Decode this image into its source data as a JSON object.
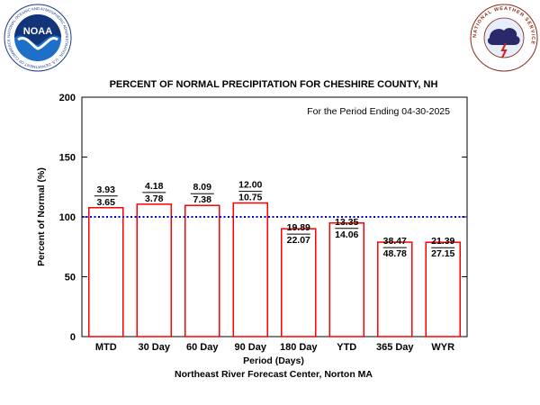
{
  "logos": {
    "left": {
      "text": "NOAA",
      "ring_text": "NATIONAL OCEANIC AND ATMOSPHERIC ADMINISTRATION · U.S. DEPARTMENT OF COMMERCE"
    },
    "right": {
      "ring_text": "NATIONAL WEATHER SERVICE"
    }
  },
  "chart_data": {
    "type": "bar",
    "title": "PERCENT OF NORMAL PRECIPITATION FOR CHESHIRE COUNTY, NH",
    "subtitle": "For the Period Ending 04-30-2025",
    "xlabel": "Period (Days)",
    "ylabel": "Percent of Normal (%)",
    "footer": "Northeast River Forecast Center, Norton MA",
    "ylim": [
      0,
      200
    ],
    "yticks": [
      "0",
      "50",
      "100",
      "150",
      "200"
    ],
    "reference_line": 100,
    "grid": false,
    "categories": [
      "MTD",
      "30 Day",
      "60 Day",
      "90 Day",
      "180 Day",
      "YTD",
      "365 Day",
      "WYR"
    ],
    "values": [
      107.7,
      110.6,
      109.6,
      111.6,
      90.1,
      94.9,
      78.9,
      78.8
    ],
    "observed": [
      "3.93",
      "4.18",
      "8.09",
      "12.00",
      "19.89",
      "13.35",
      "38.47",
      "21.39"
    ],
    "normal": [
      "3.65",
      "3.78",
      "7.38",
      "10.75",
      "22.07",
      "14.06",
      "48.78",
      "27.15"
    ],
    "colors": {
      "bar": "#ff0000",
      "reference": "#0000cc"
    }
  }
}
